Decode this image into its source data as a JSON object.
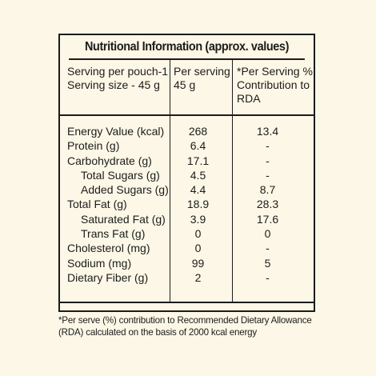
{
  "title": "Nutritional Information (approx. values)",
  "header": {
    "col1_line1": "Serving per pouch-1",
    "col1_line2": "Serving size - 45 g",
    "col2_line1": "Per serving",
    "col2_line2": "45 g",
    "col3_line1": "*Per Serving %",
    "col3_line2": "Contribution to",
    "col3_line3": "RDA"
  },
  "rows": [
    {
      "name": "Energy Value (kcal)",
      "per_serving": "268",
      "rda": "13.4",
      "indent": false
    },
    {
      "name": "Protein (g)",
      "per_serving": "6.4",
      "rda": "-",
      "indent": false
    },
    {
      "name": "Carbohydrate (g)",
      "per_serving": "17.1",
      "rda": "-",
      "indent": false
    },
    {
      "name": "Total Sugars (g)",
      "per_serving": "4.5",
      "rda": "-",
      "indent": true
    },
    {
      "name": "Added Sugars (g)",
      "per_serving": "4.4",
      "rda": "8.7",
      "indent": true
    },
    {
      "name": "Total Fat (g)",
      "per_serving": "18.9",
      "rda": "28.3",
      "indent": false
    },
    {
      "name": "Saturated Fat (g)",
      "per_serving": "3.9",
      "rda": "17.6",
      "indent": true
    },
    {
      "name": "Trans Fat (g)",
      "per_serving": "0",
      "rda": "0",
      "indent": true
    },
    {
      "name": "Cholesterol (mg)",
      "per_serving": "0",
      "rda": "-",
      "indent": false
    },
    {
      "name": "Sodium (mg)",
      "per_serving": "99",
      "rda": "5",
      "indent": false
    },
    {
      "name": "Dietary Fiber (g)",
      "per_serving": "2",
      "rda": "-",
      "indent": false
    }
  ],
  "footnote_line1": "*Per serve (%) contribution to Recommended Dietary Allowance",
  "footnote_line2": "(RDA) calculated on the basis of 2000 kcal energy",
  "colors": {
    "background": "#fcf7e6",
    "ink": "#1c1c1c"
  }
}
